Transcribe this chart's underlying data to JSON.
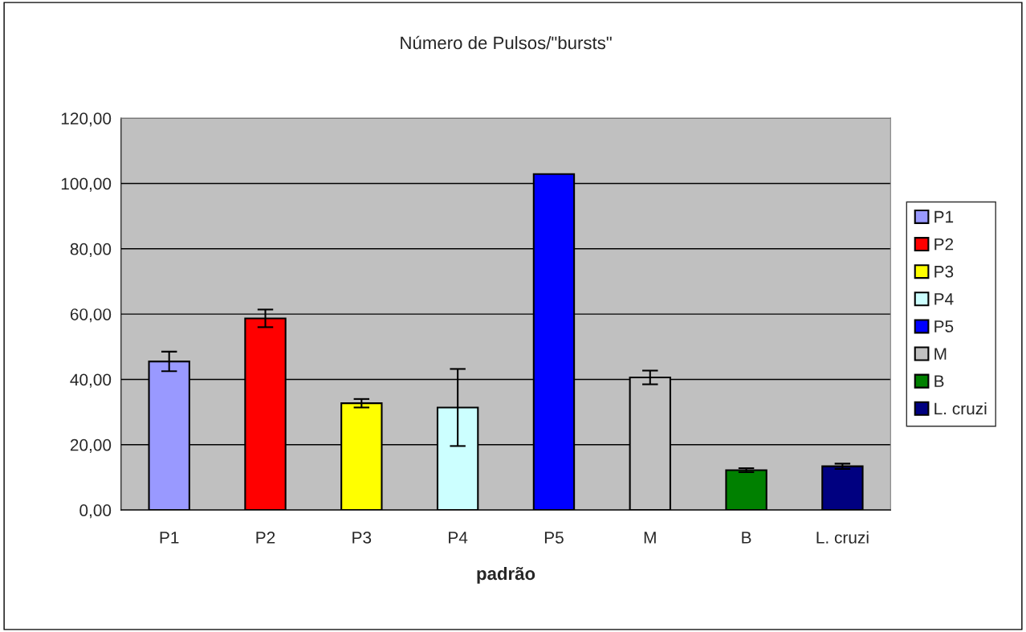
{
  "chart_data": {
    "type": "bar",
    "title": "Número de Pulsos/\"bursts\"",
    "xlabel": "padrão",
    "categories": [
      "P1",
      "P2",
      "P3",
      "P4",
      "P5",
      "M",
      "B",
      "L. cruzi"
    ],
    "series": [
      {
        "name": "P1",
        "color": "#9999ff",
        "values": [
          45.5,
          null,
          null,
          null,
          null,
          null,
          null,
          null
        ],
        "errors": [
          3.0,
          null,
          null,
          null,
          null,
          null,
          null,
          null
        ]
      },
      {
        "name": "P2",
        "color": "#ff0000",
        "values": [
          null,
          58.7,
          null,
          null,
          null,
          null,
          null,
          null
        ],
        "errors": [
          null,
          2.7,
          null,
          null,
          null,
          null,
          null,
          null
        ]
      },
      {
        "name": "P3",
        "color": "#ffff00",
        "values": [
          null,
          null,
          32.7,
          null,
          null,
          null,
          null,
          null
        ],
        "errors": [
          null,
          null,
          1.3,
          null,
          null,
          null,
          null,
          null
        ]
      },
      {
        "name": "P4",
        "color": "#ccffff",
        "values": [
          null,
          null,
          null,
          31.4,
          null,
          null,
          null,
          null
        ],
        "errors": [
          null,
          null,
          null,
          11.8,
          null,
          null,
          null,
          null
        ]
      },
      {
        "name": "P5",
        "color": "#0000ff",
        "values": [
          null,
          null,
          null,
          null,
          102.9,
          null,
          null,
          null
        ]
      },
      {
        "name": "M",
        "color": "#c0c0c0",
        "values": [
          null,
          null,
          null,
          null,
          null,
          40.6,
          null,
          null
        ],
        "errors": [
          null,
          null,
          null,
          null,
          null,
          2.1,
          null,
          null
        ]
      },
      {
        "name": "B",
        "color": "#008000",
        "values": [
          null,
          null,
          null,
          null,
          null,
          null,
          12.2,
          null
        ],
        "errors": [
          null,
          null,
          null,
          null,
          null,
          null,
          0.6,
          null
        ]
      },
      {
        "name": "L. cruzi",
        "color": "#000080",
        "values": [
          null,
          null,
          null,
          null,
          null,
          null,
          null,
          13.4
        ],
        "errors": [
          null,
          null,
          null,
          null,
          null,
          null,
          null,
          0.8
        ]
      }
    ],
    "ylim": [
      0,
      120
    ],
    "yticks": [
      {
        "value": 0,
        "label": "0,00"
      },
      {
        "value": 20,
        "label": "20,00"
      },
      {
        "value": 40,
        "label": "40,00"
      },
      {
        "value": 60,
        "label": "60,00"
      },
      {
        "value": 80,
        "label": "80,00"
      },
      {
        "value": 100,
        "label": "100,00"
      },
      {
        "value": 120,
        "label": "120,00"
      }
    ],
    "grid": "y",
    "legend": "right"
  }
}
